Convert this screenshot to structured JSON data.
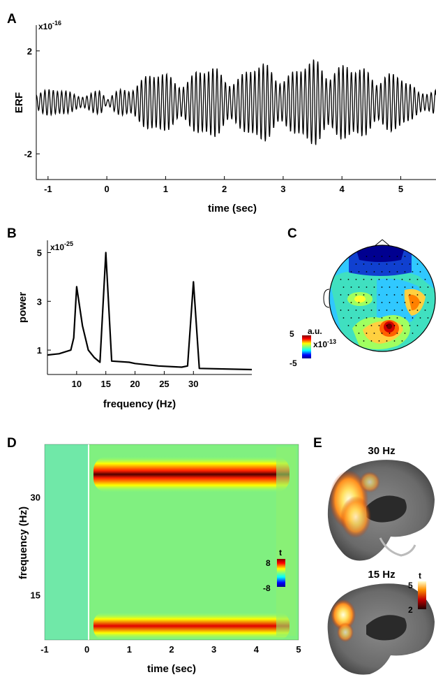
{
  "panels": {
    "A": {
      "letter": "A",
      "exponent_base": "x10",
      "exponent_power": "-16",
      "ylabel": "ERF",
      "xlabel": "time (sec)"
    },
    "B": {
      "letter": "B",
      "exponent_base": "x10",
      "exponent_power": "-25",
      "ylabel": "power",
      "xlabel": "frequency (Hz)"
    },
    "C": {
      "letter": "C",
      "colorbar_unit": "a.u.",
      "colorbar_max": "5",
      "colorbar_min": "-5",
      "exponent_base": "x10",
      "exponent_power": "-13"
    },
    "D": {
      "letter": "D",
      "ylabel": "frequency (Hz)",
      "xlabel": "time (sec)",
      "colorbar_label": "t",
      "colorbar_max": "8",
      "colorbar_min": "-8"
    },
    "E": {
      "letter": "E",
      "top_label": "30 Hz",
      "bottom_label": "15 Hz",
      "colorbar_label": "t",
      "colorbar_max": "5",
      "colorbar_min": "2"
    }
  },
  "colors": {
    "jet_low": "#0000c8",
    "jet_mid": "#7fff7f",
    "jet_high": "#c80000",
    "heat_high": "#ffffc0"
  },
  "chart_data": [
    {
      "panel": "A",
      "type": "line",
      "xlabel": "time (sec)",
      "ylabel": "ERF",
      "xlim": [
        -1.2,
        5.6
      ],
      "ylim": [
        -3,
        3
      ],
      "xticks": [
        -1,
        0,
        1,
        2,
        3,
        4,
        5
      ],
      "yticks": [
        -2,
        2
      ],
      "grid": false,
      "envelope": {
        "x": [
          -1.2,
          -0.1,
          0.0,
          0.5,
          1.0,
          1.5,
          2.0,
          2.5,
          3.0,
          3.4,
          3.8,
          4.1,
          4.6,
          5.0,
          5.3,
          5.6
        ],
        "y": [
          0.6,
          0.55,
          0.1,
          1.4,
          1.3,
          1.7,
          1.5,
          1.9,
          1.6,
          2.2,
          1.8,
          2.3,
          1.3,
          1.7,
          0.6,
          0.6
        ]
      }
    },
    {
      "panel": "B",
      "type": "line",
      "xlabel": "frequency (Hz)",
      "ylabel": "power",
      "xlim": [
        5,
        40
      ],
      "ylim": [
        0,
        5.5
      ],
      "xticks": [
        10,
        15,
        20,
        25,
        30
      ],
      "yticks": [
        1,
        3,
        5
      ],
      "series": [
        {
          "x": [
            5,
            7,
            9,
            9.5,
            10,
            11,
            12,
            13,
            14,
            15,
            16,
            19,
            20,
            24,
            28,
            29,
            30,
            31,
            40
          ],
          "y": [
            0.8,
            0.85,
            1.0,
            1.5,
            3.6,
            2.0,
            1.0,
            0.7,
            0.5,
            5.0,
            0.55,
            0.5,
            0.45,
            0.35,
            0.3,
            0.35,
            3.8,
            0.25,
            0.2
          ]
        }
      ]
    },
    {
      "panel": "D",
      "type": "heatmap",
      "xlabel": "time (sec)",
      "ylabel": "frequency (Hz)",
      "xlim": [
        -1,
        5
      ],
      "ylim": [
        8,
        38
      ],
      "xticks": [
        -1,
        0,
        1,
        2,
        3,
        4,
        5
      ],
      "yticks": [
        15,
        30
      ],
      "colorbar": [
        -8,
        8
      ],
      "bands": [
        {
          "freq": 30,
          "t_start": 0.2,
          "t_end": 4.8,
          "value": 8
        },
        {
          "freq": 15,
          "t_start": 0.2,
          "t_end": 4.8,
          "value": 6
        }
      ]
    }
  ]
}
